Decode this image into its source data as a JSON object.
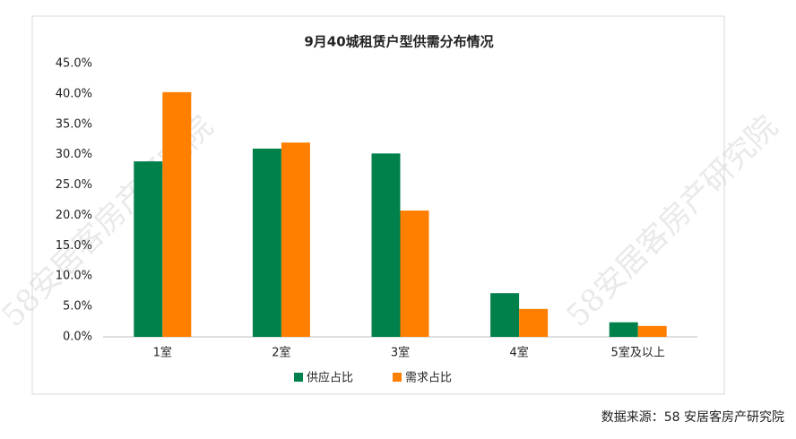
{
  "chart_data": {
    "type": "bar",
    "title": "9月40城租赁户型供需分布情况",
    "categories": [
      "1室",
      "2室",
      "3室",
      "4室",
      "5室及以上"
    ],
    "series": [
      {
        "name": "供应占比",
        "color": "#00804a",
        "values": [
          28.9,
          31.0,
          30.2,
          7.2,
          2.4
        ]
      },
      {
        "name": "需求占比",
        "color": "#ff7f00",
        "values": [
          40.3,
          32.0,
          20.8,
          4.6,
          1.8
        ]
      }
    ],
    "ylim": [
      0,
      45
    ],
    "yticks": [
      {
        "value": 0,
        "label": "0.0%"
      },
      {
        "value": 5,
        "label": "5.0%"
      },
      {
        "value": 10,
        "label": "10.0%"
      },
      {
        "value": 15,
        "label": "15.0%"
      },
      {
        "value": 20,
        "label": "20.0%"
      },
      {
        "value": 25,
        "label": "25.0%"
      },
      {
        "value": 30,
        "label": "30.0%"
      },
      {
        "value": 35,
        "label": "35.0%"
      },
      {
        "value": 40,
        "label": "40.0%"
      },
      {
        "value": 45,
        "label": "45.0%"
      }
    ],
    "grid": false,
    "legend": "bottom",
    "source": "数据来源：58 安居客房产研究院",
    "watermark": "58安居客房产研究院"
  }
}
